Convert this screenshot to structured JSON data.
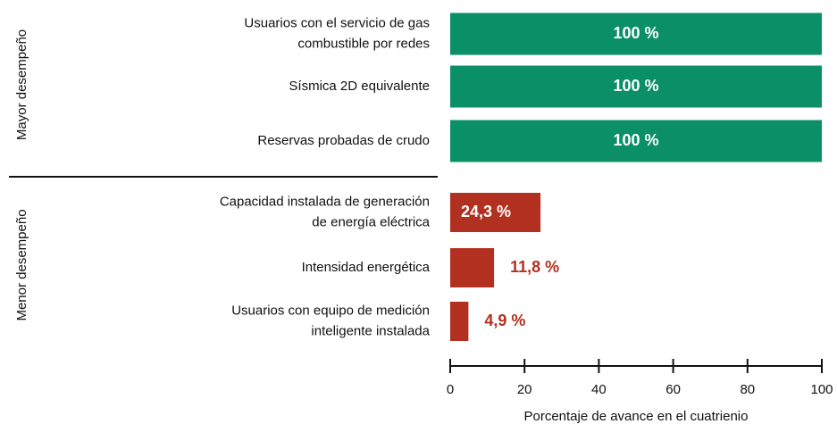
{
  "chart_data": {
    "type": "bar",
    "xlabel": "Porcentaje de avance en el cuatrienio",
    "xlim": [
      0,
      100
    ],
    "xticks": [
      0,
      20,
      40,
      60,
      80,
      100
    ],
    "groups": [
      {
        "label": "Mayor desempeño",
        "color": "#0b8f67",
        "categories": [
          [
            "Usuarios con el servicio de gas",
            "combustible por redes"
          ],
          [
            "Sísmica 2D equivalente"
          ],
          [
            "Reservas probadas de crudo"
          ]
        ],
        "values": [
          100,
          100,
          100
        ],
        "value_labels": [
          "100 %",
          "100 %",
          "100 %"
        ]
      },
      {
        "label": "Menor desempeño",
        "color": "#b1301f",
        "categories": [
          [
            "Capacidad instalada de generación",
            "de energía eléctrica"
          ],
          [
            "Intensidad energética"
          ],
          [
            "Usuarios con equipo de medición",
            "inteligente instalada"
          ]
        ],
        "values": [
          24.3,
          11.8,
          4.9
        ],
        "value_labels": [
          "24,3 %",
          "11,8 %",
          "4,9 %"
        ]
      }
    ]
  }
}
